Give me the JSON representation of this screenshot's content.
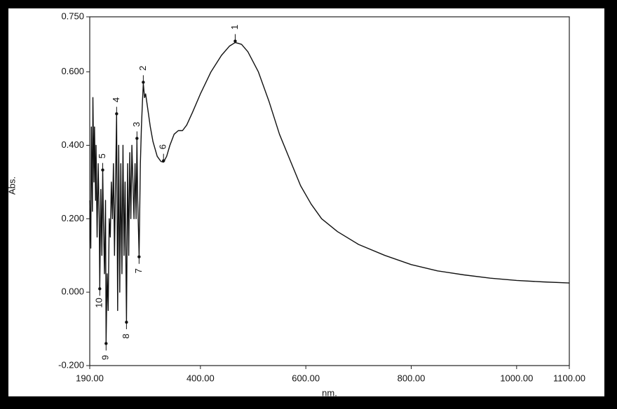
{
  "chart_data": {
    "type": "line",
    "x_label": "nm.",
    "y_label": "Abs.",
    "x": [
      190,
      192,
      193,
      195,
      196,
      198,
      199,
      201,
      202,
      204,
      206,
      208,
      209,
      211,
      213,
      214.6,
      216,
      218,
      220,
      221,
      223,
      225,
      227,
      229,
      231,
      233,
      235,
      237,
      239,
      241,
      243,
      245,
      247,
      249,
      251,
      253,
      255,
      257,
      259.7,
      262,
      264,
      266,
      268,
      270,
      272,
      274,
      276,
      278,
      279.6,
      281,
      283.6,
      286,
      288,
      290,
      291.6,
      294,
      296,
      300,
      305,
      310,
      318,
      325,
      330,
      336,
      342,
      350,
      358,
      366,
      374,
      385,
      400,
      420,
      440,
      455,
      466,
      478,
      490,
      510,
      530,
      550,
      570,
      590,
      610,
      630,
      660,
      700,
      750,
      800,
      850,
      900,
      950,
      1000,
      1050,
      1100
    ],
    "y": [
      0.25,
      0.12,
      0.45,
      0.22,
      0.53,
      0.3,
      0.45,
      0.25,
      0.4,
      0.15,
      0.35,
      0.2,
      0.013,
      0.28,
      0.1,
      0.329,
      0.2,
      0.05,
      0.25,
      -0.136,
      0.05,
      -0.05,
      0.2,
      0.15,
      0.3,
      0.2,
      0.35,
      0.1,
      0.3,
      0.482,
      -0.05,
      0.4,
      0.0,
      0.35,
      0.05,
      0.4,
      0.1,
      0.3,
      -0.078,
      0.35,
      0.1,
      0.38,
      0.2,
      0.4,
      0.3,
      0.2,
      0.35,
      0.2,
      0.415,
      0.25,
      0.1,
      0.35,
      0.45,
      0.52,
      0.568,
      0.53,
      0.54,
      0.5,
      0.45,
      0.41,
      0.37,
      0.356,
      0.354,
      0.37,
      0.4,
      0.43,
      0.44,
      0.44,
      0.455,
      0.49,
      0.54,
      0.6,
      0.645,
      0.67,
      0.68,
      0.675,
      0.655,
      0.6,
      0.52,
      0.43,
      0.36,
      0.29,
      0.24,
      0.2,
      0.165,
      0.13,
      0.1,
      0.075,
      0.058,
      0.047,
      0.038,
      0.032,
      0.028,
      0.025
    ],
    "color": "#111111",
    "xlim": [
      190,
      1100
    ],
    "ylim": [
      -0.2,
      0.75
    ],
    "xticks": [
      {
        "value": 190,
        "label": "190.00"
      },
      {
        "value": 400,
        "label": "400.00"
      },
      {
        "value": 600,
        "label": "600.00"
      },
      {
        "value": 800,
        "label": "800.00"
      },
      {
        "value": 1000,
        "label": "1000.00"
      },
      {
        "value": 1100,
        "label": "1100.00"
      }
    ],
    "yticks": [
      {
        "value": -0.2,
        "label": "-0.200"
      },
      {
        "value": 0,
        "label": "0.000"
      },
      {
        "value": 0.2,
        "label": "0.200"
      },
      {
        "value": 0.4,
        "label": "0.400"
      },
      {
        "value": 0.6,
        "label": "0.600"
      },
      {
        "value": 0.75,
        "label": "0.750"
      }
    ],
    "annotations": [
      {
        "label": "1",
        "x": 466,
        "y": 0.68
      },
      {
        "label": "2",
        "x": 291.6,
        "y": 0.568
      },
      {
        "label": "3",
        "x": 279.6,
        "y": 0.415
      },
      {
        "label": "4",
        "x": 241,
        "y": 0.482
      },
      {
        "label": "5",
        "x": 214.6,
        "y": 0.329
      },
      {
        "label": "6",
        "x": 330,
        "y": 0.354
      },
      {
        "label": "7",
        "x": 283.6,
        "y": 0.1
      },
      {
        "label": "8",
        "x": 259.7,
        "y": -0.078
      },
      {
        "label": "9",
        "x": 221,
        "y": -0.136
      },
      {
        "label": "10",
        "x": 209,
        "y": 0.013
      }
    ]
  }
}
